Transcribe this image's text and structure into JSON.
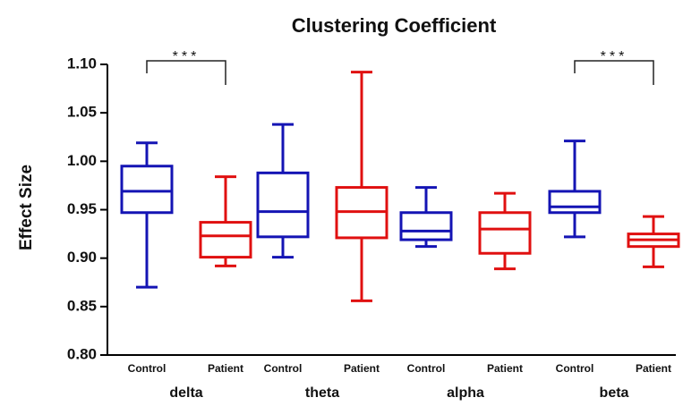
{
  "chart_data": {
    "type": "box",
    "title": "Clustering Coefficient",
    "y_label": "Effect Size",
    "groups": [
      "delta",
      "theta",
      "alpha",
      "beta"
    ],
    "series": [
      {
        "name": "Control",
        "color": "#1414b4",
        "min": [
          0.87,
          0.901,
          0.912,
          0.922
        ],
        "q1": [
          0.947,
          0.922,
          0.919,
          0.947
        ],
        "median": [
          0.969,
          0.948,
          0.928,
          0.953
        ],
        "q3": [
          0.995,
          0.988,
          0.947,
          0.969
        ],
        "max": [
          1.019,
          1.038,
          0.973,
          1.021
        ]
      },
      {
        "name": "Patient",
        "color": "#e01010",
        "min": [
          0.892,
          0.856,
          0.889,
          0.891
        ],
        "q1": [
          0.901,
          0.921,
          0.905,
          0.912
        ],
        "median": [
          0.923,
          0.948,
          0.93,
          0.919
        ],
        "q3": [
          0.937,
          0.973,
          0.947,
          0.925
        ],
        "max": [
          0.984,
          1.092,
          0.967,
          0.943
        ]
      }
    ],
    "ylim": [
      0.8,
      1.1
    ],
    "yticks": [
      {
        "value": 0.8,
        "label": "0.80"
      },
      0.85,
      {
        "value": 0.9,
        "label": "0.90"
      },
      0.95,
      {
        "value": 1.0,
        "label": "1.00"
      },
      1.05,
      {
        "value": 1.1,
        "label": "1.10"
      }
    ],
    "annotations": [
      {
        "label": "***",
        "group": "delta"
      },
      {
        "label": "***",
        "group": "beta"
      }
    ]
  }
}
